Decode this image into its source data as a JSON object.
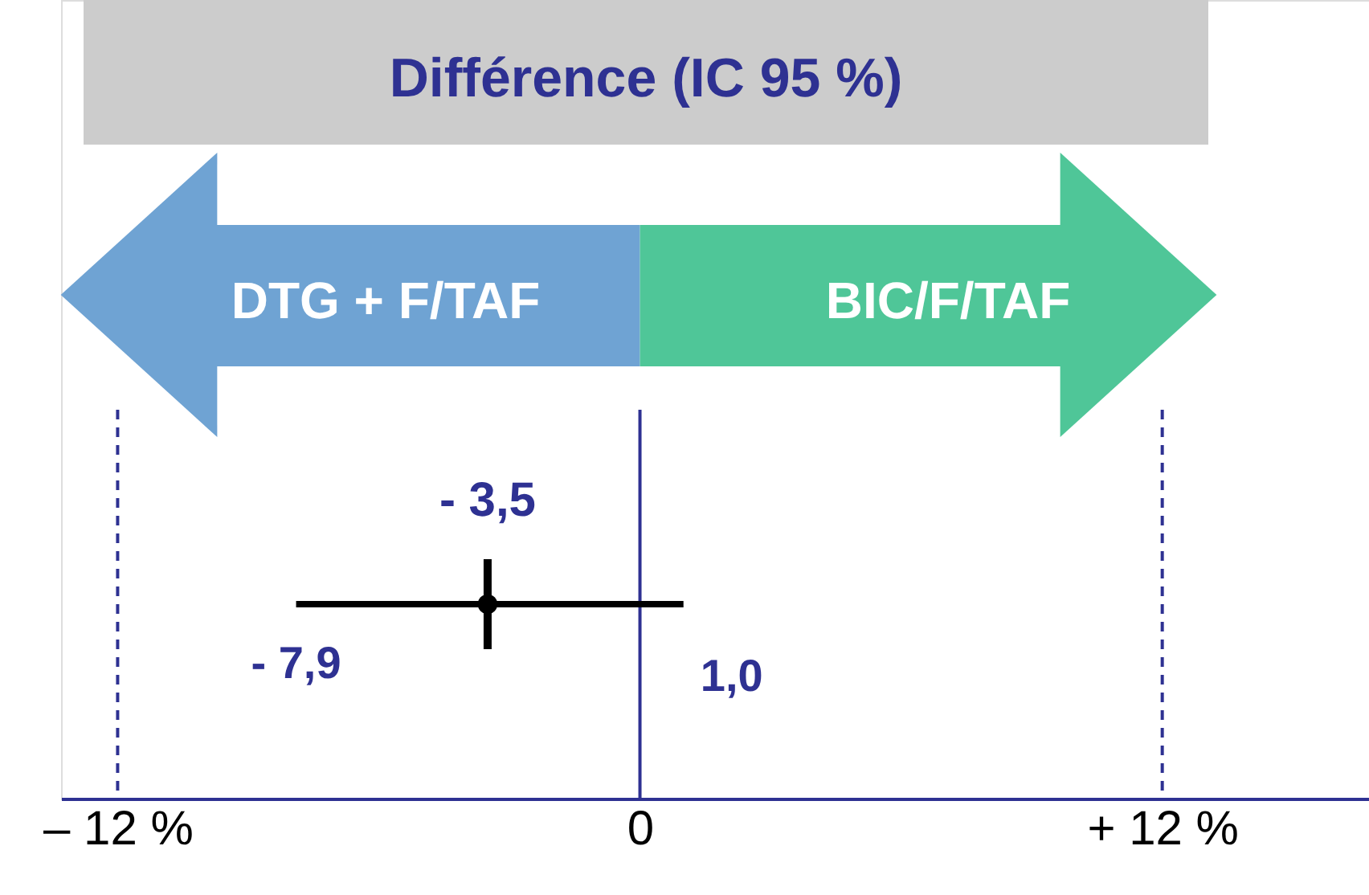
{
  "chart_data": {
    "type": "scatter",
    "orientation": "horizontal",
    "title": "Différence (IC 95 %)",
    "categories": [
      null
    ],
    "values": [
      -3.5
    ],
    "errors": [
      [
        -7.9,
        1.0
      ]
    ],
    "value_labels": [
      "- 3,5"
    ],
    "color": "#000000",
    "xlim": [
      -13.3,
      16.75
    ],
    "xticks": [
      {
        "value": -12,
        "label": "– 12 %"
      },
      0,
      {
        "value": 12,
        "label": "+ 12 %"
      }
    ],
    "ref_lines": [
      {
        "axis": "x",
        "value": -12,
        "line_style": "dashed",
        "color": "#2e3192"
      },
      {
        "axis": "x",
        "value": 0,
        "line_style": "solid",
        "color": "#2e3192"
      },
      {
        "axis": "x",
        "value": 12,
        "line_style": "dashed",
        "color": "#2e3192"
      }
    ],
    "annotations": [
      "- 7,9",
      "1,0",
      "DTG + F/TAF",
      "BIC/F/TAF"
    ],
    "grid": false
  }
}
